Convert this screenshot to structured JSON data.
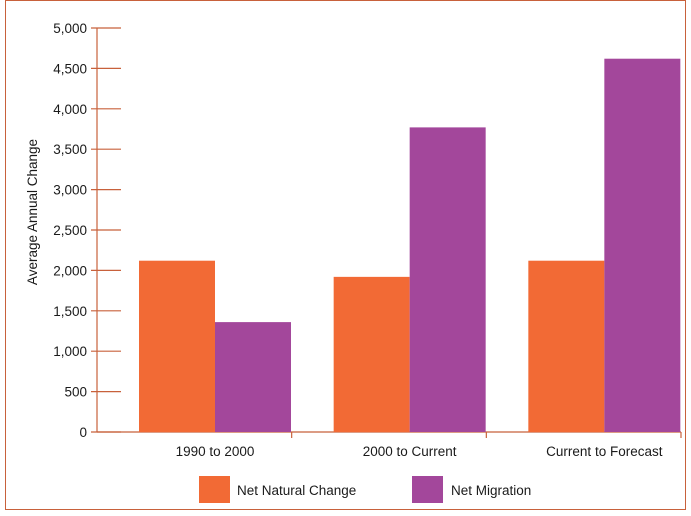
{
  "chart_data": {
    "type": "bar",
    "categories": [
      "1990 to 2000",
      "2000 to Current",
      "Current to Forecast"
    ],
    "series": [
      {
        "name": "Net Natural Change",
        "color": "#f26a35",
        "values": [
          2120,
          1920,
          2120
        ]
      },
      {
        "name": "Net Migration",
        "color": "#a3479b",
        "values": [
          1360,
          3770,
          4620
        ]
      }
    ],
    "ylabel": "Average Annual Change",
    "xlabel": "",
    "ylim": [
      0,
      5000
    ],
    "yticks": [
      0,
      500,
      1000,
      1500,
      2000,
      2500,
      3000,
      3500,
      4000,
      4500,
      5000
    ],
    "ytick_labels": [
      "0",
      "500",
      "1,000",
      "1,500",
      "2,000",
      "2,500",
      "3,000",
      "3,500",
      "4,000",
      "4,500",
      "5,000"
    ],
    "grid": false,
    "legend_position": "bottom",
    "axis_color": "#c8613b"
  }
}
